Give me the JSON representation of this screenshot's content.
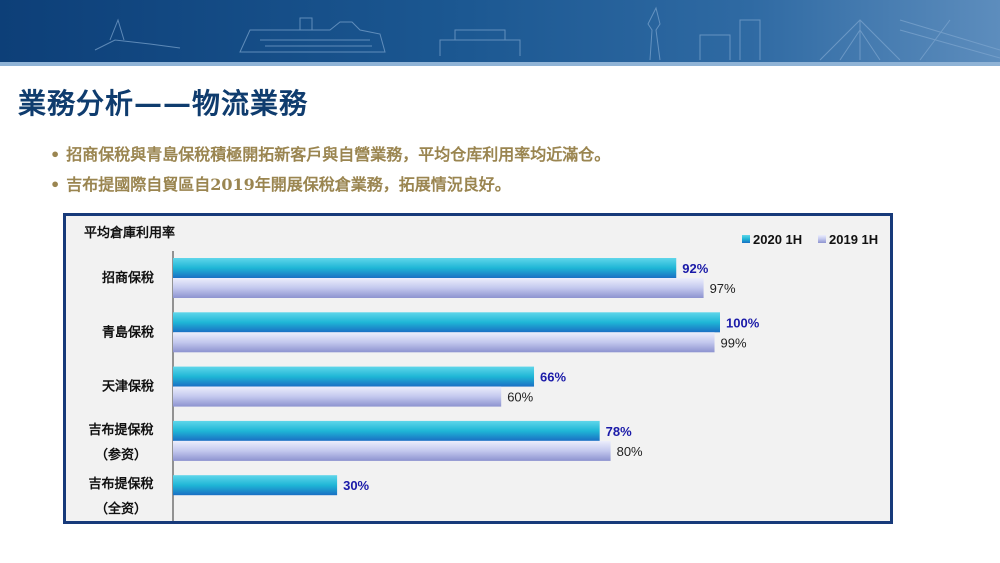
{
  "slide": {
    "title": "業務分析——物流業務",
    "bullets": [
      "招商保稅與青島保稅積極開拓新客戶與自營業務，平均仓库利用率均近滿仓。",
      "吉布提國際自貿區自2019年開展保稅倉業務，拓展情況良好。"
    ]
  },
  "colors": {
    "banner": "#1b5791",
    "title": "#0f3c6e",
    "bullet": "#9a8550",
    "series_2020": "#1fb6d6",
    "series_2019": "#c3c8ee",
    "label_2020": "#1a1aa8",
    "chart_border": "#173a7a"
  },
  "icons": [
    "banner-ship-skyline-image"
  ],
  "chart_data": {
    "type": "bar",
    "orientation": "horizontal",
    "title": "平均倉庫利用率",
    "categories": [
      [
        "招商保稅"
      ],
      [
        "青島保稅"
      ],
      [
        "天津保稅"
      ],
      [
        "吉布提保稅",
        "（参资）"
      ],
      [
        "吉布提保稅",
        "（全资）"
      ]
    ],
    "series": [
      {
        "name": "2020 1H",
        "values": [
          92,
          100,
          66,
          78,
          30
        ],
        "labels": [
          "92%",
          "100%",
          "66%",
          "78%",
          "30%"
        ]
      },
      {
        "name": "2019 1H",
        "values": [
          97,
          99,
          60,
          80,
          null
        ],
        "labels": [
          "97%",
          "99%",
          "60%",
          "80%",
          ""
        ]
      }
    ],
    "xlim": [
      0,
      100
    ],
    "grid": false,
    "legend": "top-right"
  }
}
